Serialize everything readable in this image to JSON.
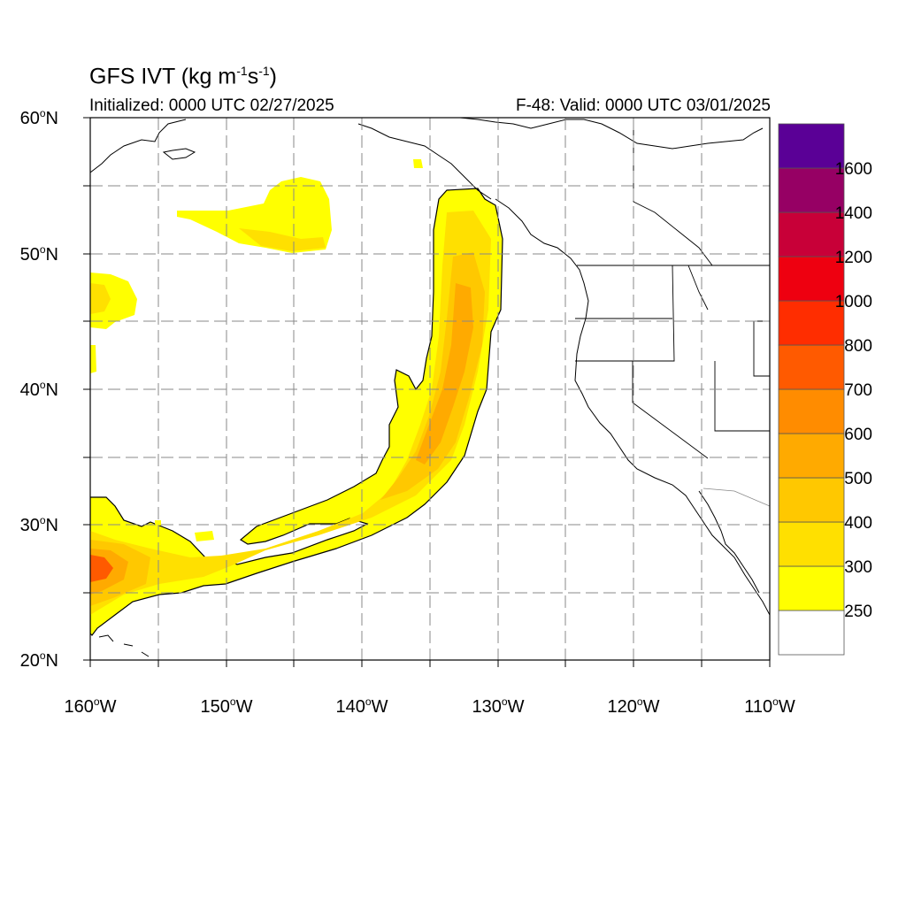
{
  "title": {
    "main": "GFS IVT (kg m",
    "exp1": "-1",
    "mid": "s",
    "exp2": "-1",
    "close": ")"
  },
  "init_label": "Initialized: 0000 UTC 02/27/2025",
  "valid_label": "F-48: Valid: 0000 UTC 03/01/2025",
  "lat_labels": [
    {
      "deg": "60",
      "hemi": "N"
    },
    {
      "deg": "50",
      "hemi": "N"
    },
    {
      "deg": "40",
      "hemi": "N"
    },
    {
      "deg": "30",
      "hemi": "N"
    },
    {
      "deg": "20",
      "hemi": "N"
    }
  ],
  "lon_labels": [
    {
      "deg": "160",
      "hemi": "W"
    },
    {
      "deg": "150",
      "hemi": "W"
    },
    {
      "deg": "140",
      "hemi": "W"
    },
    {
      "deg": "130",
      "hemi": "W"
    },
    {
      "deg": "120",
      "hemi": "W"
    },
    {
      "deg": "110",
      "hemi": "W"
    }
  ],
  "colorbar": {
    "labels": [
      "250",
      "300",
      "400",
      "500",
      "600",
      "700",
      "800",
      "1000",
      "1200",
      "1400",
      "1600"
    ],
    "colors": [
      "#ffffff",
      "#ffff00",
      "#ffe000",
      "#ffc800",
      "#ffaa00",
      "#ff8c00",
      "#ff5a00",
      "#ff2d00",
      "#ee0010",
      "#c80038",
      "#960064",
      "#5a0096"
    ]
  }
}
